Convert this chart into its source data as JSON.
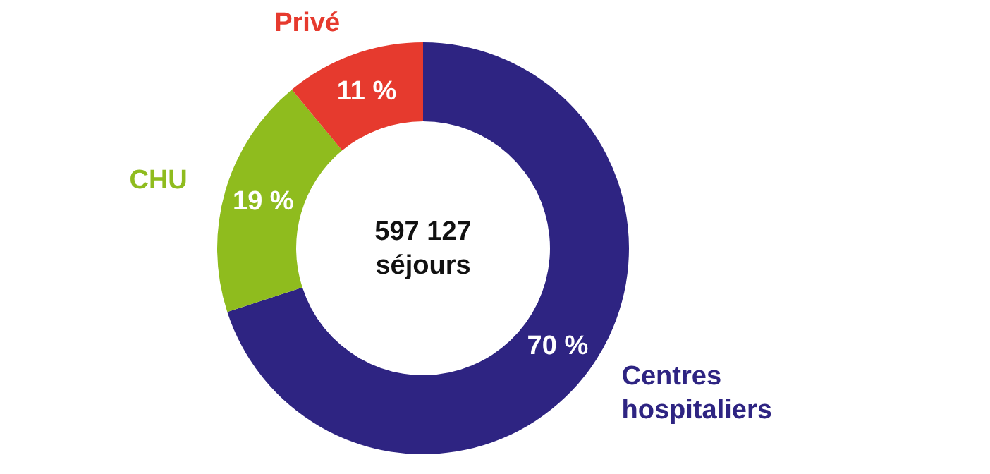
{
  "chart_data": {
    "type": "donut",
    "categories": [
      "Centres hospitaliers",
      "CHU",
      "Privé"
    ],
    "values": [
      70,
      19,
      11
    ],
    "colors": [
      "#2e2482",
      "#8fbc1e",
      "#e63a2e"
    ],
    "value_labels": [
      "70 %",
      "19 %",
      "11 %"
    ],
    "annotations": [
      "597 127\nséjours"
    ]
  }
}
